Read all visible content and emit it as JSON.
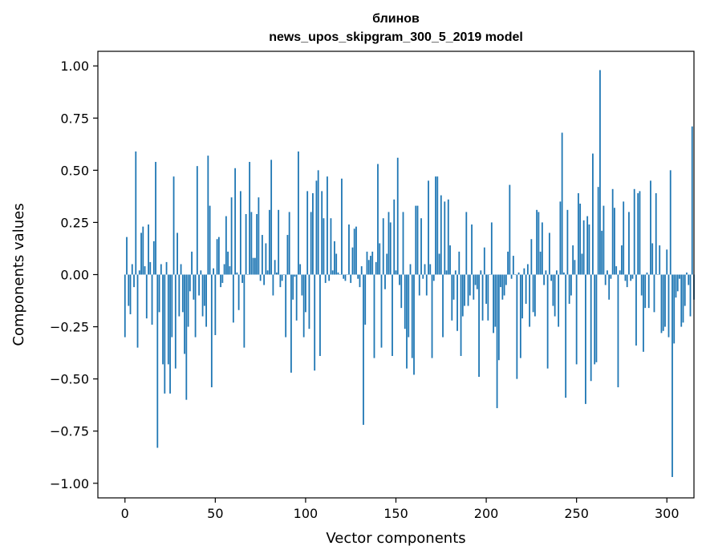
{
  "chart_data": {
    "type": "bar",
    "title_line1": "блинов",
    "title_line2": "news_upos_skipgram_300_5_2019 model",
    "xlabel": "Vector components",
    "ylabel": "Components values",
    "xlim": [
      -15,
      315
    ],
    "ylim": [
      -1.07,
      1.07
    ],
    "xticks": [
      0,
      50,
      100,
      150,
      200,
      250,
      300
    ],
    "xtick_labels": [
      "0",
      "50",
      "100",
      "150",
      "200",
      "250",
      "300"
    ],
    "yticks": [
      1.0,
      0.75,
      0.5,
      0.25,
      0.0,
      -0.25,
      -0.5,
      -0.75,
      -1.0
    ],
    "ytick_labels": [
      "1.00",
      "0.75",
      "0.50",
      "0.25",
      "0.00",
      "−0.25",
      "−0.50",
      "−0.75",
      "−1.00"
    ],
    "bar_color": "#1f77b4",
    "values": [
      -0.3,
      0.18,
      -0.15,
      -0.19,
      0.05,
      -0.06,
      0.59,
      -0.35,
      0.02,
      0.2,
      0.23,
      0.04,
      -0.21,
      0.24,
      0.06,
      -0.24,
      0.16,
      0.54,
      -0.83,
      -0.18,
      0.05,
      -0.43,
      -0.57,
      0.06,
      -0.43,
      -0.57,
      -0.3,
      0.47,
      -0.45,
      0.2,
      -0.2,
      0.05,
      -0.18,
      -0.38,
      -0.6,
      -0.25,
      -0.08,
      0.11,
      -0.12,
      -0.3,
      0.52,
      -0.1,
      0.02,
      -0.2,
      -0.15,
      -0.25,
      0.57,
      0.33,
      -0.54,
      0.03,
      -0.29,
      0.17,
      0.18,
      -0.06,
      -0.04,
      0.05,
      0.28,
      0.11,
      0.04,
      0.37,
      -0.23,
      0.51,
      0.01,
      -0.17,
      0.4,
      -0.04,
      -0.35,
      0.29,
      0.0,
      0.54,
      0.3,
      0.08,
      0.08,
      0.29,
      0.37,
      -0.03,
      0.19,
      -0.05,
      0.15,
      0.02,
      0.31,
      0.55,
      -0.1,
      0.07,
      0.01,
      0.31,
      -0.06,
      -0.03,
      0.0,
      -0.3,
      0.19,
      0.3,
      -0.47,
      -0.12,
      -0.01,
      -0.22,
      0.59,
      0.05,
      -0.1,
      -0.3,
      -0.18,
      0.4,
      -0.26,
      0.3,
      0.39,
      -0.46,
      0.45,
      0.5,
      -0.39,
      0.4,
      0.27,
      -0.04,
      0.47,
      -0.03,
      0.27,
      0.02,
      0.16,
      0.1,
      0.01,
      0.0,
      0.46,
      -0.02,
      -0.03,
      0.0,
      0.24,
      -0.04,
      0.13,
      0.22,
      0.23,
      -0.02,
      -0.06,
      0.04,
      -0.72,
      -0.24,
      0.11,
      0.07,
      0.09,
      0.11,
      -0.4,
      0.06,
      0.53,
      0.15,
      -0.35,
      0.27,
      -0.07,
      0.1,
      0.3,
      0.25,
      -0.39,
      0.36,
      0.02,
      0.56,
      -0.05,
      -0.16,
      0.3,
      -0.26,
      -0.45,
      -0.3,
      0.05,
      -0.4,
      -0.48,
      0.33,
      0.33,
      -0.1,
      0.27,
      -0.02,
      0.05,
      -0.1,
      0.45,
      0.05,
      -0.4,
      -0.03,
      0.47,
      0.47,
      0.1,
      0.38,
      -0.3,
      0.35,
      0.02,
      0.36,
      0.14,
      -0.22,
      -0.12,
      0.02,
      -0.27,
      0.11,
      -0.39,
      -0.2,
      -0.15,
      0.3,
      -0.15,
      -0.1,
      0.24,
      -0.12,
      -0.05,
      -0.07,
      -0.49,
      0.02,
      -0.22,
      0.13,
      -0.14,
      -0.22,
      0.0,
      0.25,
      -0.28,
      -0.25,
      -0.64,
      -0.41,
      -0.06,
      -0.12,
      -0.1,
      -0.05,
      0.11,
      0.43,
      -0.02,
      0.09,
      0.0,
      -0.5,
      0.01,
      -0.4,
      -0.21,
      0.03,
      -0.14,
      0.05,
      -0.25,
      0.17,
      -0.18,
      -0.2,
      0.31,
      0.3,
      0.11,
      0.25,
      -0.05,
      0.02,
      -0.45,
      0.2,
      -0.03,
      -0.15,
      -0.2,
      0.02,
      -0.25,
      0.35,
      0.68,
      0.01,
      -0.59,
      0.31,
      -0.14,
      -0.1,
      0.14,
      0.07,
      -0.43,
      0.39,
      0.34,
      0.1,
      0.26,
      -0.62,
      0.28,
      0.24,
      -0.51,
      0.58,
      -0.43,
      -0.42,
      0.42,
      0.98,
      0.21,
      0.33,
      -0.05,
      0.02,
      -0.12,
      -0.02,
      0.41,
      0.32,
      0.04,
      -0.54,
      0.02,
      0.14,
      0.35,
      -0.03,
      -0.06,
      0.3,
      -0.03,
      -0.02,
      0.41,
      -0.34,
      0.39,
      0.4,
      -0.1,
      -0.37,
      -0.16,
      0.01,
      -0.16,
      0.45,
      0.15,
      -0.18,
      0.39,
      0.0,
      0.14,
      -0.28,
      -0.27,
      -0.25,
      0.12,
      -0.3,
      0.5,
      -0.97,
      -0.33,
      -0.11,
      -0.08,
      -0.02,
      -0.25,
      -0.23,
      -0.15,
      0.01,
      -0.05,
      -0.2,
      0.71,
      -0.12
    ]
  }
}
